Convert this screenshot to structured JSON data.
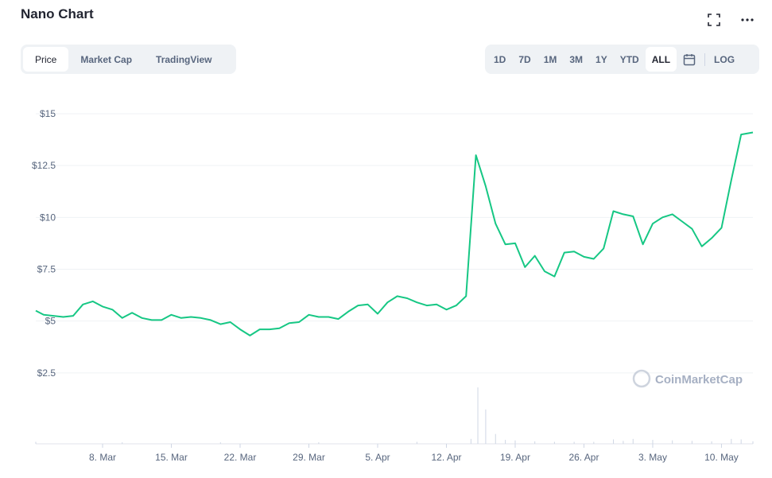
{
  "header": {
    "title": "Nano Chart",
    "fullscreen_icon": "fullscreen-icon",
    "more_icon": "more-icon"
  },
  "tabs": [
    "Price",
    "Market Cap",
    "TradingView"
  ],
  "ranges": [
    "1D",
    "7D",
    "1M",
    "3M",
    "1Y",
    "YTD",
    "ALL"
  ],
  "calendar_icon": "calendar-icon",
  "log_label": "LOG",
  "watermark": "CoinMarketCap",
  "colors": {
    "line": "#16c784",
    "grid": "#eff2f5",
    "axis_text": "#58667e",
    "volume": "#cfd6e4"
  },
  "chart_data": {
    "type": "line",
    "title": "Nano Chart",
    "xlabel": "",
    "ylabel": "",
    "ylim": [
      0,
      15
    ],
    "y_ticks": [
      "$15",
      "$12.5",
      "$10",
      "$7.5",
      "$5",
      "$2.5"
    ],
    "y_tick_values": [
      15,
      12.5,
      10,
      7.5,
      5,
      2.5
    ],
    "x_ticks": [
      "8. Mar",
      "15. Mar",
      "22. Mar",
      "29. Mar",
      "5. Apr",
      "12. Apr",
      "19. Apr",
      "26. Apr",
      "3. May",
      "10. May"
    ],
    "x_tick_days": [
      8,
      15,
      22,
      29,
      36,
      43,
      50,
      57,
      64,
      71
    ],
    "x_range": [
      1.2,
      74.2
    ],
    "grid": true,
    "series": [
      {
        "values": [
          [
            1.2,
            5.5
          ],
          [
            2,
            5.3
          ],
          [
            3,
            5.25
          ],
          [
            4,
            5.2
          ],
          [
            5,
            5.25
          ],
          [
            6,
            5.8
          ],
          [
            7,
            5.95
          ],
          [
            8,
            5.7
          ],
          [
            9,
            5.55
          ],
          [
            10,
            5.15
          ],
          [
            11,
            5.4
          ],
          [
            12,
            5.15
          ],
          [
            13,
            5.05
          ],
          [
            14,
            5.05
          ],
          [
            15,
            5.3
          ],
          [
            16,
            5.15
          ],
          [
            17,
            5.2
          ],
          [
            18,
            5.15
          ],
          [
            19,
            5.05
          ],
          [
            20,
            4.85
          ],
          [
            21,
            4.95
          ],
          [
            22,
            4.6
          ],
          [
            23,
            4.3
          ],
          [
            24,
            4.6
          ],
          [
            25,
            4.6
          ],
          [
            26,
            4.65
          ],
          [
            27,
            4.9
          ],
          [
            28,
            4.95
          ],
          [
            29,
            5.3
          ],
          [
            30,
            5.2
          ],
          [
            31,
            5.2
          ],
          [
            32,
            5.1
          ],
          [
            33,
            5.45
          ],
          [
            34,
            5.75
          ],
          [
            35,
            5.8
          ],
          [
            36,
            5.35
          ],
          [
            37,
            5.9
          ],
          [
            38,
            6.2
          ],
          [
            39,
            6.1
          ],
          [
            40,
            5.9
          ],
          [
            41,
            5.75
          ],
          [
            42,
            5.8
          ],
          [
            43,
            5.55
          ],
          [
            44,
            5.75
          ],
          [
            45,
            6.2
          ],
          [
            46,
            13.0
          ],
          [
            47,
            11.5
          ],
          [
            48,
            9.7
          ],
          [
            49,
            8.7
          ],
          [
            50,
            8.75
          ],
          [
            51,
            7.6
          ],
          [
            52,
            8.15
          ],
          [
            53,
            7.4
          ],
          [
            54,
            7.15
          ],
          [
            55,
            8.3
          ],
          [
            56,
            8.35
          ],
          [
            57,
            8.1
          ],
          [
            58,
            8.0
          ],
          [
            59,
            8.5
          ],
          [
            60,
            10.3
          ],
          [
            61,
            10.15
          ],
          [
            62,
            10.05
          ],
          [
            63,
            8.7
          ],
          [
            64,
            9.7
          ],
          [
            65,
            10.0
          ],
          [
            66,
            10.15
          ],
          [
            67,
            9.8
          ],
          [
            68,
            9.45
          ],
          [
            69,
            8.6
          ],
          [
            70,
            9.0
          ],
          [
            71,
            9.5
          ],
          [
            72,
            11.8
          ],
          [
            73,
            14.0
          ],
          [
            74.2,
            14.1
          ]
        ]
      }
    ],
    "volume": [
      [
        1.2,
        0.4
      ],
      [
        10,
        0.3
      ],
      [
        20,
        0.3
      ],
      [
        30,
        0.3
      ],
      [
        40,
        0.4
      ],
      [
        45.5,
        1.0
      ],
      [
        46.2,
        11.5
      ],
      [
        47,
        7.0
      ],
      [
        48,
        2.0
      ],
      [
        49,
        0.8
      ],
      [
        50,
        0.7
      ],
      [
        52,
        0.5
      ],
      [
        54,
        0.4
      ],
      [
        56,
        0.4
      ],
      [
        58,
        0.4
      ],
      [
        60,
        0.9
      ],
      [
        61,
        0.6
      ],
      [
        62,
        1.0
      ],
      [
        64,
        0.8
      ],
      [
        66,
        0.7
      ],
      [
        68,
        0.6
      ],
      [
        70,
        0.5
      ],
      [
        72,
        1.0
      ],
      [
        73,
        0.9
      ],
      [
        74.2,
        0.5
      ]
    ]
  }
}
